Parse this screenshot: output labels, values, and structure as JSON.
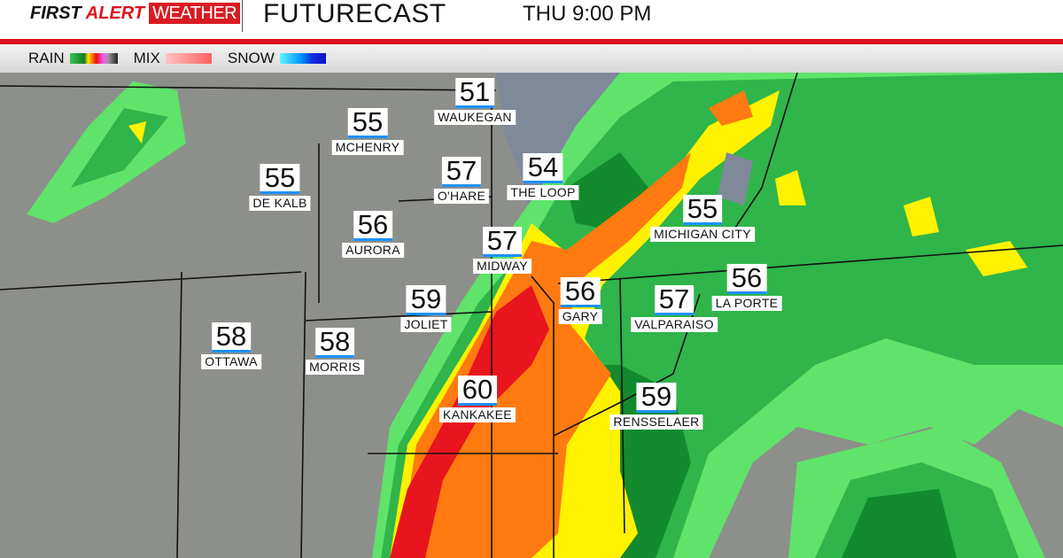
{
  "header": {
    "brand": [
      "FIRST",
      "ALERT",
      "WEATHER"
    ],
    "title": "FUTURECAST",
    "time": "THU 9:00 PM"
  },
  "legend": {
    "rain": "RAIN",
    "mix": "MIX",
    "snow": "SNOW"
  },
  "colors": {
    "accent_red": "#d8141e",
    "light_green": "#5fe36a",
    "green": "#2fb54a",
    "dark_green": "#138a2d",
    "yellow": "#fff200",
    "orange": "#ff7a10",
    "red": "#e8141e",
    "lake": "#7f8999",
    "land": "#8d8f8a"
  },
  "cities": [
    {
      "temp": "51",
      "name": "WAUKEGAN"
    },
    {
      "temp": "55",
      "name": "MCHENRY"
    },
    {
      "temp": "55",
      "name": "DE KALB"
    },
    {
      "temp": "57",
      "name": "O'HARE"
    },
    {
      "temp": "54",
      "name": "THE LOOP"
    },
    {
      "temp": "56",
      "name": "AURORA"
    },
    {
      "temp": "57",
      "name": "MIDWAY"
    },
    {
      "temp": "55",
      "name": "MICHIGAN CITY"
    },
    {
      "temp": "56",
      "name": "LA PORTE"
    },
    {
      "temp": "56",
      "name": "GARY"
    },
    {
      "temp": "57",
      "name": "VALPARAISO"
    },
    {
      "temp": "59",
      "name": "JOLIET"
    },
    {
      "temp": "58",
      "name": "OTTAWA"
    },
    {
      "temp": "58",
      "name": "MORRIS"
    },
    {
      "temp": "60",
      "name": "KANKAKEE"
    },
    {
      "temp": "59",
      "name": "RENSSELAER"
    }
  ]
}
